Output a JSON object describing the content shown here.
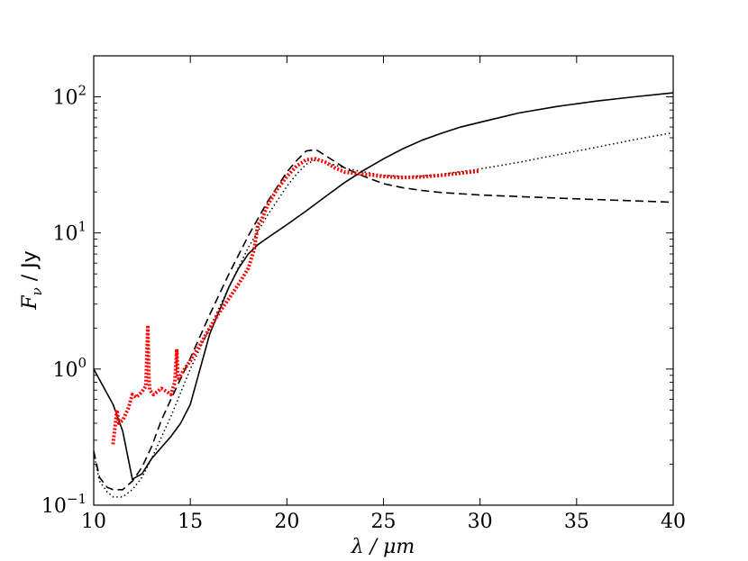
{
  "chart_data": {
    "type": "line",
    "xlabel": "λ / μm",
    "ylabel": "F_ν / Jy",
    "ylabel_parts": {
      "symbol": "F",
      "subscript": "ν",
      "unit": " / Jy"
    },
    "xlim": [
      10,
      40
    ],
    "ylim": [
      0.1,
      200
    ],
    "yscale": "log",
    "grid": false,
    "x_ticks": [
      10,
      15,
      20,
      25,
      30,
      35,
      40
    ],
    "y_ticks": [
      0.1,
      1,
      10,
      100
    ],
    "y_tick_labels": [
      {
        "base": "10",
        "exp": "−1"
      },
      {
        "base": "10",
        "exp": "0"
      },
      {
        "base": "10",
        "exp": "1"
      },
      {
        "base": "10",
        "exp": "2"
      }
    ],
    "series": [
      {
        "style": "solid",
        "color": "#000000",
        "x": [
          10,
          11,
          11.5,
          12,
          12.5,
          13,
          14,
          14.5,
          15,
          16,
          17,
          17.5,
          18,
          18.5,
          19,
          20,
          21,
          22,
          23,
          24,
          25,
          26,
          27,
          28,
          29,
          30,
          32,
          34,
          36,
          38,
          40
        ],
        "y": [
          1.0,
          0.55,
          0.35,
          0.155,
          0.17,
          0.22,
          0.32,
          0.4,
          0.55,
          1.8,
          4.0,
          5.5,
          7.0,
          8.2,
          9.2,
          11.5,
          14.5,
          18.5,
          23.5,
          29.0,
          35.0,
          41.5,
          48.0,
          54.0,
          60.0,
          65.0,
          76.0,
          85.0,
          93.0,
          100.0,
          107.0
        ]
      },
      {
        "style": "dashed",
        "color": "#000000",
        "x": [
          10,
          10.3,
          10.7,
          11,
          11.5,
          12,
          12.5,
          13,
          13.5,
          14,
          15,
          16,
          17,
          18,
          19,
          20,
          20.5,
          21,
          21.5,
          22,
          23,
          24,
          25,
          26,
          27,
          28,
          30,
          32,
          35,
          38,
          40
        ],
        "y": [
          0.25,
          0.16,
          0.135,
          0.13,
          0.13,
          0.15,
          0.19,
          0.27,
          0.42,
          0.6,
          1.2,
          2.5,
          5.0,
          9.5,
          17.0,
          28.0,
          34.0,
          40.0,
          41.0,
          37.0,
          30.0,
          26.0,
          23.0,
          21.5,
          20.5,
          19.8,
          19.0,
          18.5,
          17.8,
          17.2,
          16.8
        ]
      },
      {
        "style": "dotted",
        "color": "#000000",
        "x": [
          10,
          10.3,
          10.7,
          11,
          11.5,
          12,
          12.5,
          13,
          14,
          15,
          16,
          17,
          18,
          19,
          20,
          20.5,
          21,
          21.5,
          22,
          23,
          24,
          25,
          26,
          27,
          28,
          30,
          32,
          34,
          36,
          38,
          40
        ],
        "y": [
          0.24,
          0.15,
          0.125,
          0.115,
          0.115,
          0.13,
          0.16,
          0.22,
          0.45,
          1.0,
          2.0,
          4.0,
          7.8,
          13.5,
          22.0,
          27.0,
          32.0,
          34.5,
          33.0,
          30.0,
          28.0,
          26.5,
          26.0,
          26.2,
          27.0,
          29.5,
          33.0,
          37.5,
          42.5,
          48.5,
          54.5
        ]
      },
      {
        "style": "thick-dotted",
        "color": "#ff0000",
        "x": [
          11,
          11.2,
          11.3,
          11.5,
          11.8,
          12,
          12.2,
          12.5,
          12.7,
          12.8,
          12.85,
          12.9,
          13.1,
          13.5,
          13.8,
          14.0,
          14.2,
          14.3,
          14.35,
          14.4,
          14.6,
          15.0,
          15.5,
          16,
          16.5,
          17,
          17.5,
          18,
          18.3,
          18.5,
          18.7,
          19,
          19.5,
          20,
          20.5,
          21,
          21.5,
          22,
          22.5,
          23,
          24,
          25,
          26,
          27,
          28,
          29,
          30
        ],
        "y": [
          0.28,
          0.5,
          0.4,
          0.42,
          0.52,
          0.65,
          0.62,
          0.68,
          0.75,
          2.1,
          0.9,
          0.7,
          0.65,
          0.72,
          0.68,
          0.65,
          0.8,
          1.4,
          0.9,
          0.85,
          0.95,
          1.15,
          1.5,
          2.0,
          2.6,
          3.3,
          4.2,
          5.5,
          7.5,
          11.5,
          12.5,
          16.0,
          21.0,
          26.0,
          31.0,
          34.5,
          35.0,
          33.0,
          30.0,
          28.0,
          27.0,
          26.0,
          25.5,
          25.8,
          26.5,
          27.5,
          28.5
        ]
      }
    ]
  }
}
